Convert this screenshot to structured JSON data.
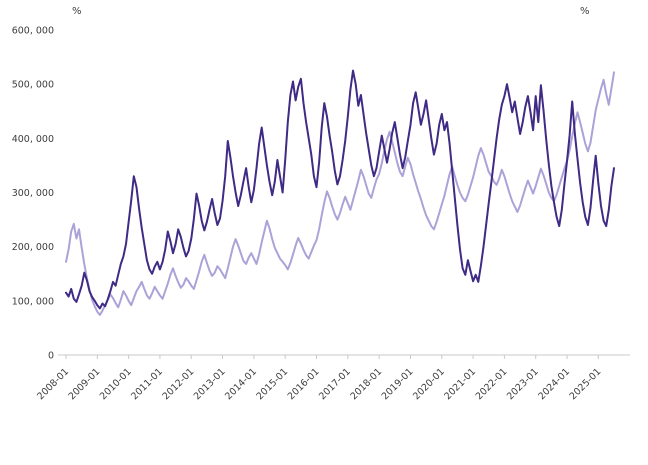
{
  "chart_data": {
    "type": "line",
    "unit_left": "%",
    "unit_right": "%",
    "x_start": "2008-01",
    "x_frequency": "monthly",
    "grid": false,
    "legend": "none",
    "ylim": [
      0,
      600000
    ],
    "axis_color": "#c9c9c9",
    "text_color": "#3d3d3d",
    "y_ticks": [
      {
        "label": "0",
        "value": 0
      },
      {
        "label": "100, 000",
        "value": 100000
      },
      {
        "label": "200, 000",
        "value": 200000
      },
      {
        "label": "300, 000",
        "value": 300000
      },
      {
        "label": "400, 000",
        "value": 400000
      },
      {
        "label": "500, 000",
        "value": 500000
      },
      {
        "label": "600, 000",
        "value": 600000
      }
    ],
    "x_ticks": [
      {
        "label": "2008-01",
        "month_index": 0
      },
      {
        "label": "2009-01",
        "month_index": 12
      },
      {
        "label": "2010-01",
        "month_index": 24
      },
      {
        "label": "2011-01",
        "month_index": 36
      },
      {
        "label": "2012-01",
        "month_index": 48
      },
      {
        "label": "2013-01",
        "month_index": 60
      },
      {
        "label": "2014-01",
        "month_index": 72
      },
      {
        "label": "2015-01",
        "month_index": 84
      },
      {
        "label": "2016-01",
        "month_index": 96
      },
      {
        "label": "2017-01",
        "month_index": 108
      },
      {
        "label": "2018-01",
        "month_index": 120
      },
      {
        "label": "2019-01",
        "month_index": 132
      },
      {
        "label": "2020-01",
        "month_index": 144
      },
      {
        "label": "2021-01",
        "month_index": 156
      },
      {
        "label": "2022-01",
        "month_index": 168
      },
      {
        "label": "2023-01",
        "month_index": 180
      },
      {
        "label": "2024-01",
        "month_index": 192
      },
      {
        "label": "2025-01",
        "month_index": 204
      }
    ],
    "series": [
      {
        "name": "light-purple-series",
        "color": "#aca2d8",
        "values": [
          172000,
          195000,
          228000,
          242000,
          215000,
          232000,
          198000,
          168000,
          142000,
          120000,
          102000,
          90000,
          80000,
          74000,
          82000,
          92000,
          102000,
          112000,
          105000,
          96000,
          88000,
          102000,
          118000,
          110000,
          100000,
          92000,
          105000,
          118000,
          126000,
          135000,
          122000,
          110000,
          104000,
          114000,
          126000,
          118000,
          110000,
          104000,
          118000,
          132000,
          148000,
          160000,
          146000,
          134000,
          124000,
          130000,
          142000,
          136000,
          128000,
          122000,
          138000,
          154000,
          172000,
          185000,
          170000,
          156000,
          146000,
          152000,
          164000,
          158000,
          150000,
          142000,
          160000,
          180000,
          200000,
          214000,
          202000,
          188000,
          174000,
          168000,
          180000,
          188000,
          178000,
          168000,
          186000,
          208000,
          228000,
          248000,
          234000,
          214000,
          198000,
          188000,
          178000,
          172000,
          166000,
          158000,
          170000,
          186000,
          202000,
          216000,
          206000,
          194000,
          184000,
          178000,
          190000,
          202000,
          212000,
          232000,
          258000,
          282000,
          302000,
          290000,
          274000,
          260000,
          250000,
          262000,
          278000,
          292000,
          280000,
          268000,
          286000,
          304000,
          322000,
          342000,
          330000,
          314000,
          298000,
          290000,
          308000,
          324000,
          334000,
          354000,
          378000,
          398000,
          412000,
          394000,
          374000,
          354000,
          338000,
          330000,
          348000,
          364000,
          352000,
          334000,
          318000,
          302000,
          288000,
          272000,
          258000,
          248000,
          238000,
          232000,
          246000,
          262000,
          278000,
          294000,
          314000,
          334000,
          348000,
          330000,
          314000,
          300000,
          290000,
          284000,
          296000,
          312000,
          328000,
          348000,
          368000,
          382000,
          370000,
          354000,
          338000,
          330000,
          320000,
          314000,
          326000,
          342000,
          330000,
          314000,
          298000,
          284000,
          274000,
          264000,
          276000,
          292000,
          308000,
          322000,
          310000,
          298000,
          312000,
          328000,
          344000,
          332000,
          316000,
          300000,
          290000,
          284000,
          296000,
          312000,
          328000,
          344000,
          358000,
          378000,
          404000,
          428000,
          448000,
          430000,
          410000,
          390000,
          376000,
          392000,
          422000,
          452000,
          472000,
          492000,
          508000,
          482000,
          462000,
          492000,
          522000
        ]
      },
      {
        "name": "dark-purple-series",
        "color": "#3f2a85",
        "values": [
          115000,
          108000,
          122000,
          104000,
          98000,
          112000,
          128000,
          152000,
          138000,
          118000,
          107000,
          100000,
          92000,
          86000,
          95000,
          90000,
          103000,
          118000,
          135000,
          128000,
          148000,
          168000,
          182000,
          205000,
          245000,
          285000,
          330000,
          310000,
          270000,
          235000,
          205000,
          175000,
          158000,
          150000,
          163000,
          172000,
          158000,
          172000,
          195000,
          228000,
          210000,
          188000,
          205000,
          232000,
          218000,
          198000,
          182000,
          192000,
          215000,
          252000,
          298000,
          276000,
          248000,
          230000,
          246000,
          268000,
          288000,
          262000,
          240000,
          252000,
          285000,
          330000,
          395000,
          365000,
          330000,
          300000,
          275000,
          295000,
          320000,
          345000,
          310000,
          282000,
          305000,
          345000,
          390000,
          420000,
          385000,
          350000,
          320000,
          295000,
          320000,
          360000,
          330000,
          300000,
          360000,
          430000,
          480000,
          505000,
          470000,
          495000,
          510000,
          465000,
          430000,
          400000,
          370000,
          330000,
          310000,
          355000,
          420000,
          465000,
          440000,
          405000,
          375000,
          340000,
          315000,
          330000,
          360000,
          395000,
          440000,
          490000,
          525000,
          500000,
          460000,
          480000,
          445000,
          410000,
          380000,
          350000,
          330000,
          345000,
          375000,
          405000,
          380000,
          355000,
          380000,
          410000,
          430000,
          400000,
          370000,
          345000,
          365000,
          395000,
          425000,
          465000,
          485000,
          455000,
          425000,
          445000,
          470000,
          435000,
          400000,
          370000,
          390000,
          425000,
          445000,
          415000,
          430000,
          390000,
          340000,
          290000,
          240000,
          195000,
          160000,
          148000,
          175000,
          155000,
          136000,
          148000,
          135000,
          165000,
          200000,
          240000,
          280000,
          320000,
          360000,
          400000,
          435000,
          462000,
          478000,
          500000,
          475000,
          448000,
          468000,
          438000,
          408000,
          430000,
          458000,
          478000,
          448000,
          415000,
          478000,
          430000,
          498000,
          452000,
          398000,
          352000,
          312000,
          282000,
          255000,
          238000,
          268000,
          315000,
          358000,
          405000,
          468000,
          408000,
          362000,
          318000,
          282000,
          255000,
          240000,
          272000,
          322000,
          368000,
          318000,
          275000,
          248000,
          238000,
          268000,
          312000,
          345000
        ]
      }
    ]
  }
}
